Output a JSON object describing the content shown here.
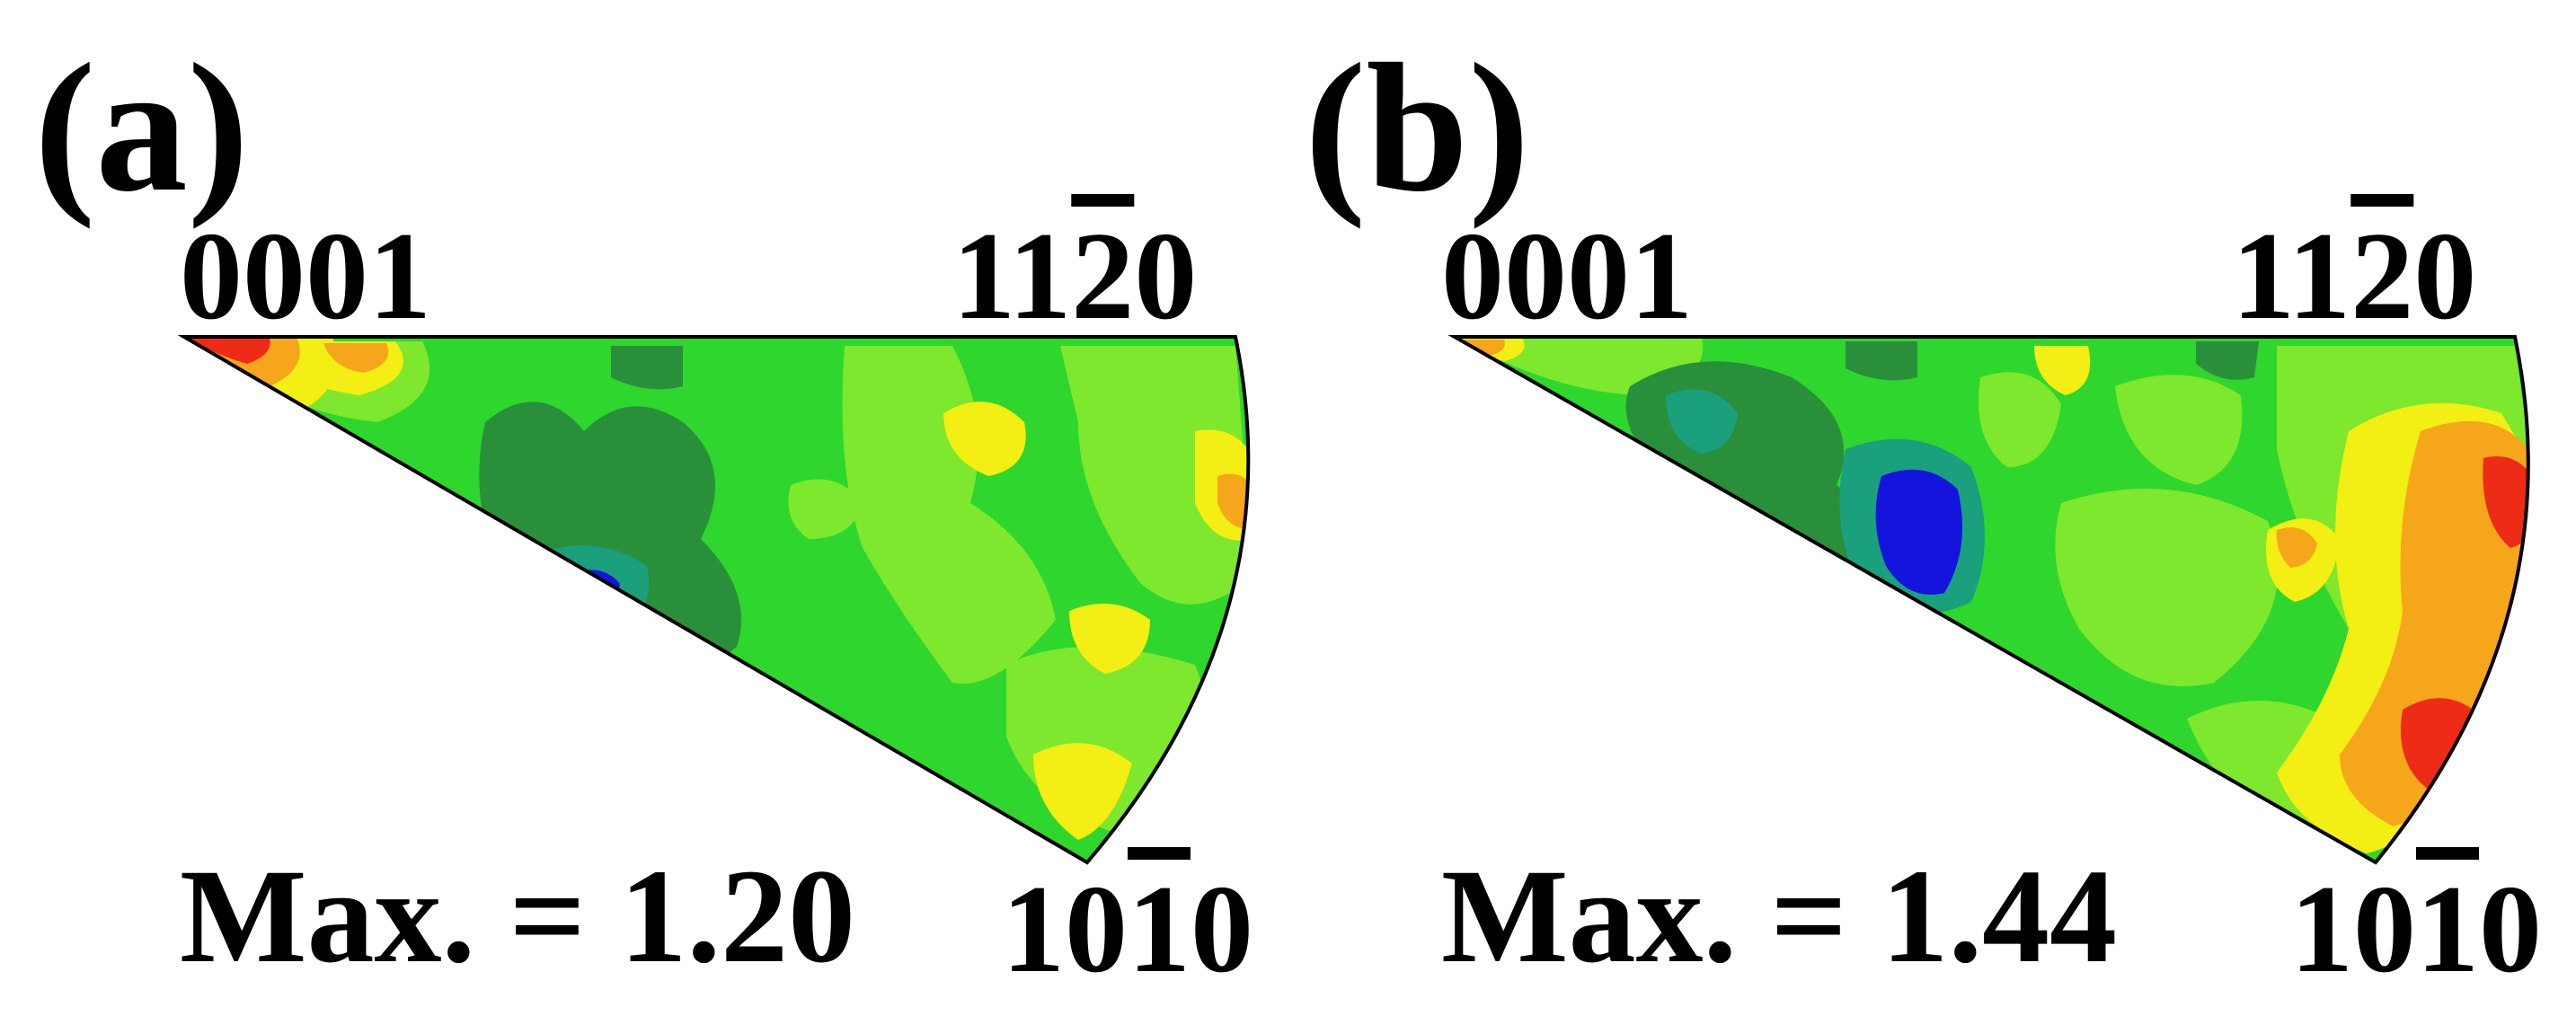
{
  "panels": [
    {
      "id": "a",
      "label": "(a)",
      "corners": {
        "c0001": "0001",
        "c1120": [
          "11",
          "2",
          "0"
        ],
        "c1010": [
          "10",
          "1",
          "0"
        ]
      },
      "max_label": "Max. = 1.20",
      "colors": {
        "base": "#2ed62e",
        "light": "#7de82d",
        "yellow": "#f3ee14",
        "orange": "#f6a61b",
        "red": "#ee2b17",
        "teal": "#1aa07c",
        "blue": "#1414dd",
        "dark": "#2a8f3a"
      }
    },
    {
      "id": "b",
      "label": "(b)",
      "corners": {
        "c0001": "0001",
        "c1120": [
          "11",
          "2",
          "0"
        ],
        "c1010": [
          "10",
          "1",
          "0"
        ]
      },
      "max_label": "Max. = 1.44",
      "colors": {
        "base": "#2ed62e",
        "light": "#7de82d",
        "yellow": "#f3ee14",
        "orange": "#f6a61b",
        "red": "#ee2b17",
        "teal": "#1aa07c",
        "blue": "#1414dd",
        "dark": "#2a8f3a"
      }
    }
  ]
}
